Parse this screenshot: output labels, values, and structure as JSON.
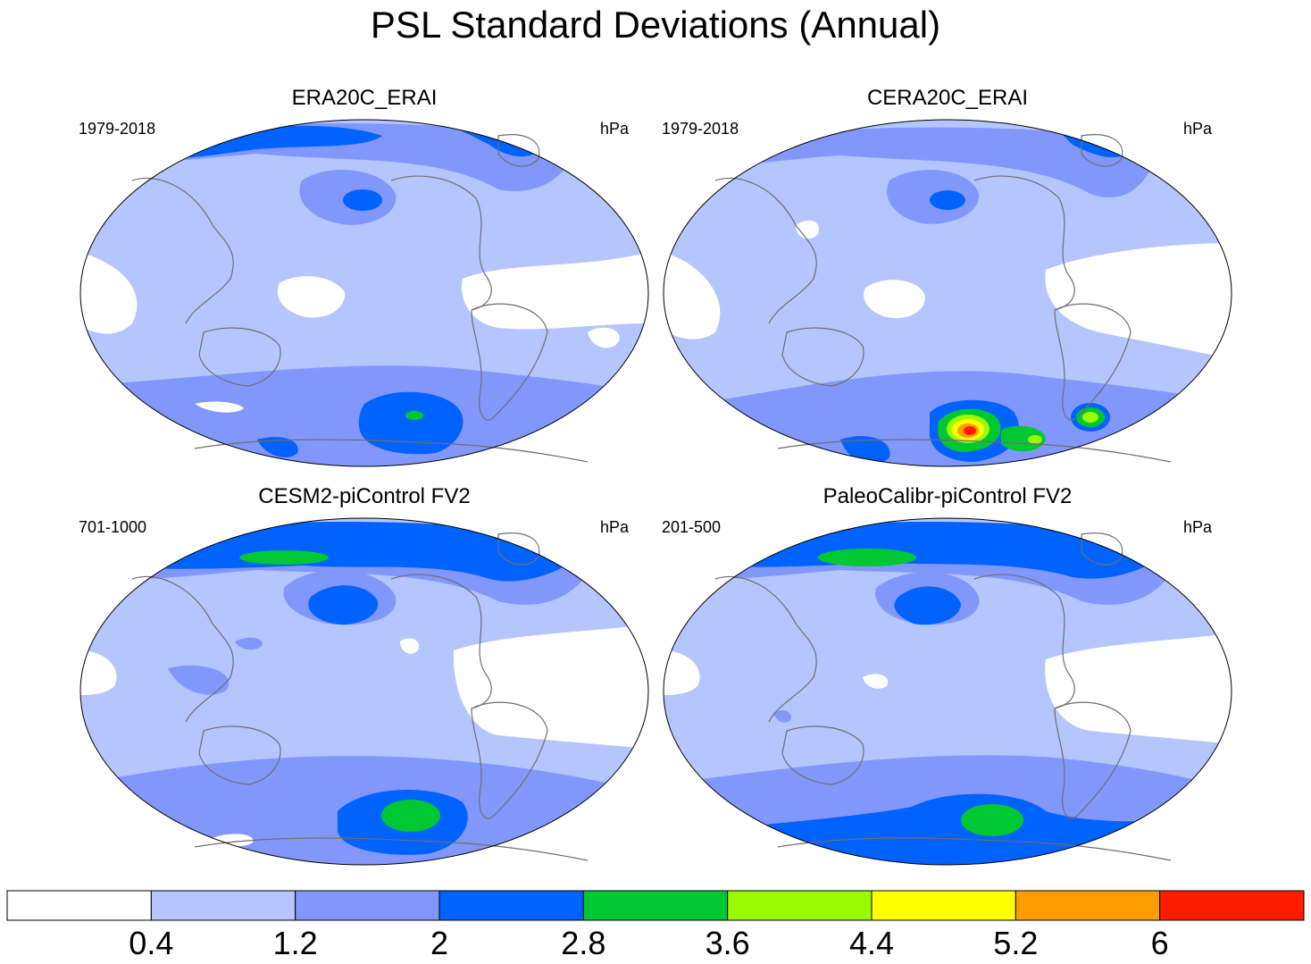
{
  "title": "PSL Standard Deviations (Annual)",
  "colors": {
    "ocean_outline": "#000000",
    "coastline": "#6e6e6e",
    "levels": [
      "#ffffff",
      "#b4c6fd",
      "#8297fc",
      "#0063ff",
      "#00c832",
      "#9bfa00",
      "#ffff00",
      "#ff9c00",
      "#ff1c00"
    ]
  },
  "chart_data": [
    {
      "type": "heatmap",
      "panel_title": "ERA20C_ERAI",
      "period": "1979-2018",
      "units": "hPa",
      "projection": "Robinson, Pacific-centered",
      "dominant_level": "0.4–1.2",
      "maxima": [
        {
          "region": "North Pacific (Aleutian)",
          "range": "2–2.8"
        },
        {
          "region": "Southern Ocean (Amundsen/Bellingshausen)",
          "range": "2.8–3.6"
        },
        {
          "region": "Antarctic interior",
          "range": "2–2.8"
        }
      ]
    },
    {
      "type": "heatmap",
      "panel_title": "CERA20C_ERAI",
      "period": "1979-2018",
      "units": "hPa",
      "projection": "Robinson, Pacific-centered",
      "dominant_level": "0.4–1.2",
      "maxima": [
        {
          "region": "North Pacific (Aleutian)",
          "range": "2–2.8"
        },
        {
          "region": "Southern Ocean (Amundsen/Bellingshausen)",
          "range": ">6"
        },
        {
          "region": "South Atlantic sector",
          "range": "3.6–4.4"
        }
      ]
    },
    {
      "type": "heatmap",
      "panel_title": "CESM2-piControl FV2",
      "period": "701-1000",
      "units": "hPa",
      "projection": "Robinson, Pacific-centered",
      "dominant_level": "0.4–1.2",
      "maxima": [
        {
          "region": "Arctic (Siberian sector)",
          "range": "2.8–3.6"
        },
        {
          "region": "North Pacific (Aleutian)",
          "range": "2–2.8"
        },
        {
          "region": "Southern Ocean (Amundsen/Bellingshausen)",
          "range": "2.8–3.6"
        }
      ]
    },
    {
      "type": "heatmap",
      "panel_title": "PaleoCalibr-piControl FV2",
      "period": "201-500",
      "units": "hPa",
      "projection": "Robinson, Pacific-centered",
      "dominant_level": "0.4–1.2",
      "maxima": [
        {
          "region": "Arctic (Siberian sector)",
          "range": "2.8–3.6"
        },
        {
          "region": "North Pacific (Aleutian)",
          "range": "2–2.8"
        },
        {
          "region": "Southern Ocean (Amundsen/Bellingshausen)",
          "range": "2.8–3.6"
        }
      ]
    }
  ],
  "colorbar": {
    "levels": [
      0.4,
      1.2,
      2,
      2.8,
      3.6,
      4.4,
      5.2,
      6
    ],
    "labels": [
      "0.4",
      "1.2",
      "2",
      "2.8",
      "3.6",
      "4.4",
      "5.2",
      "6"
    ]
  }
}
